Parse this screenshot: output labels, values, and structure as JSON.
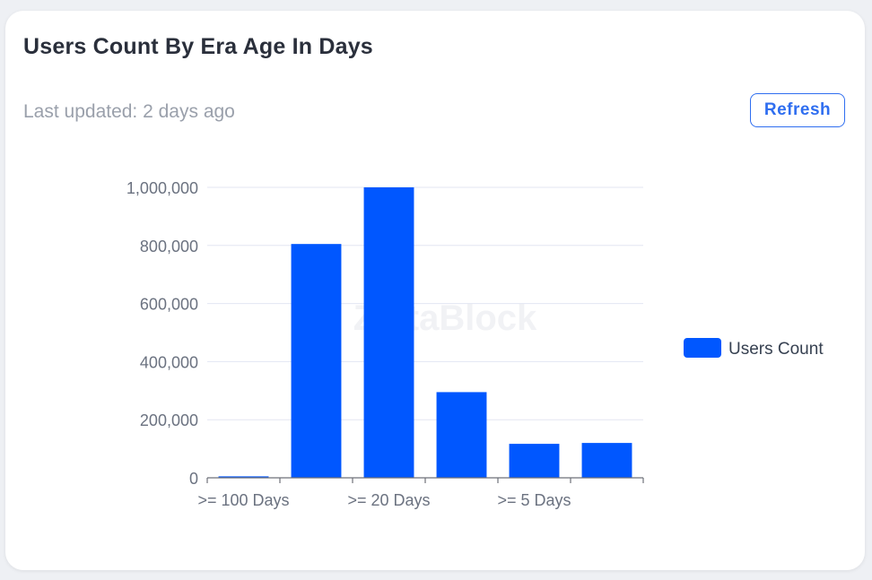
{
  "header": {
    "title": "Users Count By Era Age In Days",
    "last_updated": "Last updated: 2 days ago",
    "refresh_label": "Refresh"
  },
  "watermark": "ZettaBlock",
  "colors": {
    "bar": "#0057ff",
    "grid": "#e3e6f2",
    "axis_text": "#6b7280",
    "accent": "#2f6ef0"
  },
  "chart_data": {
    "type": "bar",
    "categories": [
      ">= 100 Days",
      "",
      ">= 20 Days",
      "",
      ">= 5 Days",
      ""
    ],
    "series": [
      {
        "name": "Users Count",
        "values": [
          5000,
          805000,
          1000000,
          295000,
          117000,
          120000
        ]
      }
    ],
    "xlabel": "",
    "ylabel": "",
    "ylim": [
      0,
      1000000
    ],
    "yticks": [
      0,
      200000,
      400000,
      600000,
      800000,
      1000000
    ],
    "ytick_labels": [
      "0",
      "200,000",
      "400,000",
      "600,000",
      "800,000",
      "1,000,000"
    ],
    "grid": true,
    "legend": "right"
  }
}
